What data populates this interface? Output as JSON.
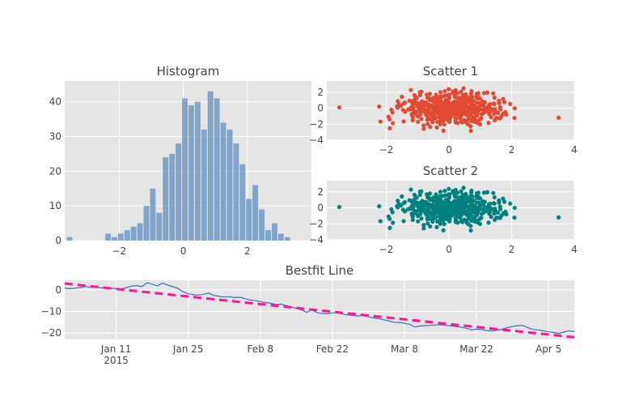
{
  "chart_data": [
    {
      "type": "bar",
      "subtype": "histogram",
      "title": "Histogram",
      "bar_color": "#6f99c6",
      "bin_start": -3.65,
      "bin_width": 0.2,
      "counts": [
        1,
        0,
        0,
        0,
        0,
        0,
        2,
        1,
        2,
        3,
        4,
        5,
        10,
        15,
        8,
        24,
        25,
        28,
        41,
        39,
        40,
        32,
        43,
        41,
        34,
        32,
        28,
        22,
        12,
        16,
        9,
        3,
        5,
        2,
        1,
        0,
        0,
        0,
        0,
        0,
        0,
        1
      ],
      "xlim": [
        -3.7,
        4.0
      ],
      "ylim": [
        0,
        46
      ],
      "xticks": [
        -2,
        0,
        2
      ],
      "xtick_labels": [
        "−2",
        "0",
        "2"
      ],
      "yticks": [
        0,
        10,
        20,
        30,
        40
      ],
      "ytick_labels": [
        "0",
        "10",
        "20",
        "30",
        "40"
      ]
    },
    {
      "type": "scatter",
      "title": "Scatter 1",
      "color": "#e24a33",
      "n_points": 500,
      "x_std": 0.8,
      "y_std": 1.0,
      "xlim": [
        -3.9,
        4.0
      ],
      "ylim": [
        -4,
        3.4
      ],
      "xticks": [
        -2,
        0,
        2,
        4
      ],
      "xtick_labels": [
        "−2",
        "0",
        "2",
        "4"
      ],
      "yticks": [
        -4,
        -2,
        0,
        2
      ],
      "ytick_labels": [
        "−4",
        "−2",
        "0",
        "2"
      ]
    },
    {
      "type": "scatter",
      "title": "Scatter 2",
      "color": "#00807e",
      "n_points": 500,
      "x_std": 0.8,
      "y_std": 1.0,
      "xlim": [
        -3.9,
        4.0
      ],
      "ylim": [
        -4,
        3.4
      ],
      "xticks": [
        -2,
        0,
        2,
        4
      ],
      "xtick_labels": [
        "−2",
        "0",
        "2",
        "4"
      ],
      "yticks": [
        -4,
        -2,
        0,
        2
      ],
      "ytick_labels": [
        "−4",
        "−2",
        "0",
        "2"
      ]
    },
    {
      "type": "line",
      "title": "Bestfit Line",
      "x_start": "2015-01-01",
      "x_end": "2015-04-10",
      "ylim": [
        -23,
        4.5
      ],
      "line_color": "#3d6fb0",
      "fit_color": "#ff1493",
      "fit": {
        "start": 3,
        "end": -22
      },
      "values": [
        0.9,
        0.6,
        0.8,
        1.1,
        1.6,
        1.2,
        1.7,
        0.9,
        1.3,
        0.8,
        0.6,
        0.5,
        1.1,
        1.8,
        2.0,
        1.6,
        3.3,
        2.7,
        1.9,
        3.1,
        2.3,
        1.5,
        0.7,
        -0.8,
        -1.8,
        -2.2,
        -2.4,
        -2.0,
        -1.5,
        -2.6,
        -3.0,
        -3.3,
        -3.1,
        -3.6,
        -3.4,
        -4.0,
        -4.7,
        -5.0,
        -5.4,
        -5.9,
        -6.2,
        -6.8,
        -6.6,
        -7.2,
        -7.9,
        -8.6,
        -9.3,
        -10.4,
        -9.2,
        -10.6,
        -10.9,
        -11.1,
        -10.7,
        -10.5,
        -11.2,
        -11.6,
        -11.9,
        -12.1,
        -11.8,
        -12.5,
        -13.0,
        -13.3,
        -13.9,
        -14.4,
        -15.0,
        -15.1,
        -15.5,
        -16.0,
        -17.2,
        -16.8,
        -16.6,
        -16.5,
        -16.3,
        -16.2,
        -16.4,
        -16.7,
        -17.0,
        -17.3,
        -17.8,
        -18.6,
        -18.2,
        -18.4,
        -18.9,
        -19.0,
        -18.7,
        -18.3,
        -17.5,
        -17.0,
        -16.6,
        -16.5,
        -17.6,
        -18.4,
        -18.6,
        -19.0,
        -19.5,
        -19.8,
        -20.2,
        -19.6,
        -19.0,
        -19.4
      ],
      "xticks": [
        "2015-01-11",
        "2015-01-25",
        "2015-02-08",
        "2015-02-22",
        "2015-03-08",
        "2015-03-22",
        "2015-04-05"
      ],
      "xtick_labels": [
        "Jan 11",
        "Jan 25",
        "Feb 8",
        "Feb 22",
        "Mar 8",
        "Mar 22",
        "Apr 5"
      ],
      "xtick_sublabel": "2015",
      "yticks": [
        0,
        -10,
        -20
      ],
      "ytick_labels": [
        "0",
        "−10",
        "−20"
      ]
    }
  ]
}
